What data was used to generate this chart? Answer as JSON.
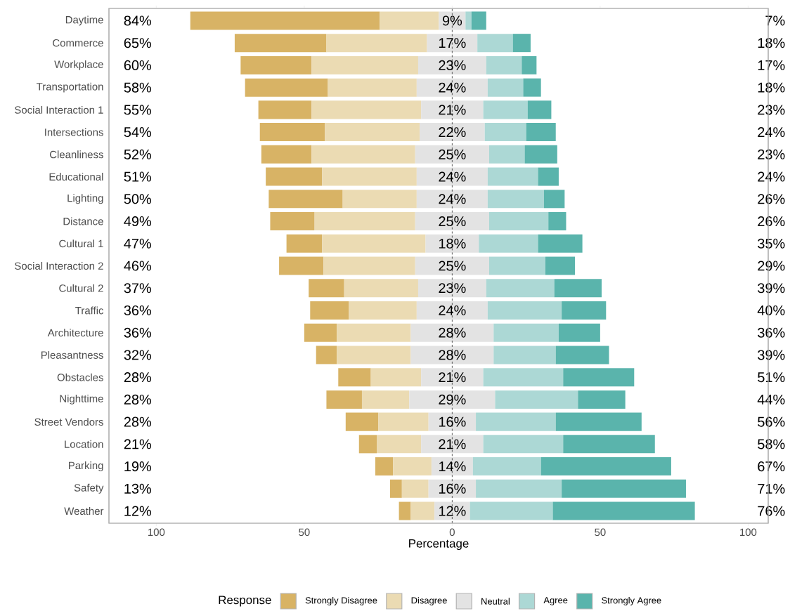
{
  "chart_data": {
    "type": "bar",
    "orientation": "horizontal",
    "xlabel": "Percentage",
    "legend_title": "Response",
    "legend": "bottom",
    "categories": [
      "Daytime",
      "Commerce",
      "Workplace",
      "Transportation",
      "Social Interaction 1",
      "Intersections",
      "Cleanliness",
      "Educational",
      "Lighting",
      "Distance",
      "Cultural 1",
      "Social Interaction 2",
      "Cultural 2",
      "Traffic",
      "Architecture",
      "Pleasantness",
      "Obstacles",
      "Nighttime",
      "Street Vendors",
      "Location",
      "Parking",
      "Safety",
      "Weather"
    ],
    "xlim": [
      -116,
      106.8
    ],
    "xticks": [
      {
        "value": -100,
        "label": "100"
      },
      {
        "value": -50,
        "label": "50"
      },
      0,
      50,
      100
    ],
    "ref_lines": [
      {
        "axis": "x",
        "value": 0,
        "line_style": "dashed",
        "color": "#333333"
      }
    ],
    "series": [
      {
        "name": "Strongly Disagree",
        "color": "#d8b365",
        "values": [
          64,
          31,
          24,
          28,
          18,
          22,
          17,
          19,
          25,
          15,
          12,
          15,
          12,
          13,
          11,
          7,
          11,
          12,
          11,
          6,
          6,
          4,
          4
        ],
        "base": [
          -88.5,
          -73.5,
          -71.5,
          -70,
          -65.5,
          -65,
          -64.5,
          -63,
          -62,
          -61.5,
          -56,
          -58.5,
          -48.5,
          -48,
          -50,
          -46,
          -38.5,
          -42.5,
          -36,
          -31.5,
          -26,
          -21,
          -18
        ]
      },
      {
        "name": "Disagree",
        "color": "#ebdbb3",
        "values": [
          20,
          34,
          36,
          30,
          37,
          32,
          35,
          32,
          25,
          34,
          35,
          31,
          25,
          23,
          25,
          25,
          17,
          16,
          17,
          15,
          13,
          9,
          8
        ],
        "base": [
          -24.5,
          -42.5,
          -47.5,
          -42,
          -47.5,
          -43,
          -47.5,
          -44,
          -37,
          -46.5,
          -44,
          -43.5,
          -36.5,
          -35,
          -39,
          -39,
          -27.5,
          -30.5,
          -25,
          -25.5,
          -20,
          -17,
          -14
        ]
      },
      {
        "name": "Neutral",
        "color": "#e3e3e3",
        "values": [
          9,
          17,
          23,
          24,
          21,
          22,
          25,
          24,
          24,
          25,
          18,
          25,
          23,
          24,
          28,
          28,
          21,
          29,
          16,
          21,
          14,
          16,
          12
        ],
        "base": [
          -4.5,
          -8.5,
          -11.5,
          -12,
          -10.5,
          -11,
          -12.5,
          -12,
          -12,
          -12.5,
          -9,
          -12.5,
          -11.5,
          -12,
          -14,
          -14,
          -10.5,
          -14.5,
          -8,
          -10.5,
          -7,
          -8,
          -6
        ],
        "value_labels": [
          "9%",
          "17%",
          "23%",
          "24%",
          "21%",
          "22%",
          "25%",
          "24%",
          "24%",
          "25%",
          "18%",
          "25%",
          "23%",
          "24%",
          "28%",
          "28%",
          "21%",
          "29%",
          "16%",
          "21%",
          "14%",
          "16%",
          "12%"
        ]
      },
      {
        "name": "Agree",
        "color": "#acd8d5",
        "values": [
          2,
          12,
          12,
          12,
          15,
          14,
          12,
          17,
          19,
          20,
          20,
          19,
          23,
          25,
          22,
          21,
          27,
          28,
          27,
          27,
          23,
          29,
          28
        ],
        "base": [
          4.5,
          8.5,
          11.5,
          12,
          10.5,
          11,
          12.5,
          12,
          12,
          12.5,
          9,
          12.5,
          11.5,
          12,
          14,
          14,
          10.5,
          14.5,
          8,
          10.5,
          7,
          8,
          6
        ]
      },
      {
        "name": "Strongly Agree",
        "color": "#5ab4ac",
        "values": [
          5,
          6,
          5,
          6,
          8,
          10,
          11,
          7,
          7,
          6,
          15,
          10,
          16,
          15,
          14,
          18,
          24,
          16,
          29,
          31,
          44,
          42,
          48
        ],
        "base": [
          6.5,
          20.5,
          23.5,
          24,
          25.5,
          25,
          24.5,
          29,
          31,
          32.5,
          29,
          31.5,
          34.5,
          37,
          36,
          35,
          37.5,
          42.5,
          35,
          37.5,
          30,
          37,
          34
        ]
      }
    ],
    "annotations": [
      "84%",
      "65%",
      "60%",
      "58%",
      "55%",
      "54%",
      "52%",
      "51%",
      "50%",
      "49%",
      "47%",
      "46%",
      "37%",
      "36%",
      "36%",
      "32%",
      "28%",
      "28%",
      "28%",
      "21%",
      "19%",
      "13%",
      "12%",
      "7%",
      "18%",
      "17%",
      "18%",
      "23%",
      "24%",
      "23%",
      "24%",
      "26%",
      "26%",
      "35%",
      "29%",
      "39%",
      "40%",
      "36%",
      "39%",
      "51%",
      "44%",
      "56%",
      "58%",
      "67%",
      "71%",
      "76%"
    ]
  }
}
